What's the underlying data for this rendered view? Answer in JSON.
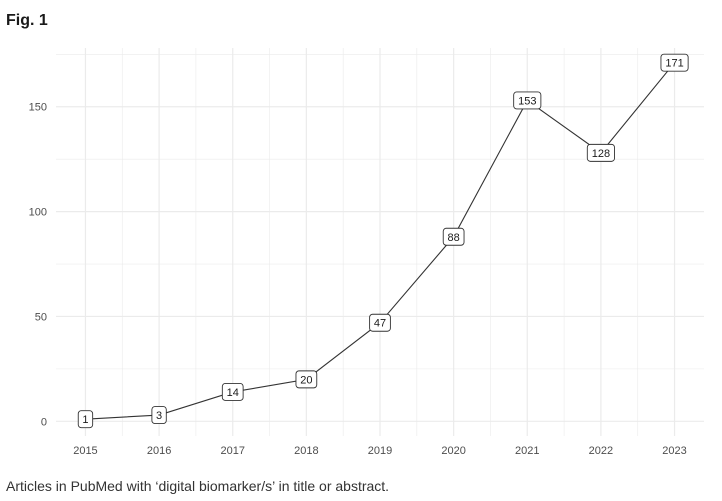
{
  "figure": {
    "label": "Fig. 1",
    "caption": "Articles in PubMed with ‘digital biomarker/s’ in title or abstract."
  },
  "chart_data": {
    "type": "line",
    "title": "",
    "xlabel": "",
    "ylabel": "",
    "x": [
      2015,
      2016,
      2017,
      2018,
      2019,
      2020,
      2021,
      2022,
      2023
    ],
    "series": [
      {
        "values": [
          1,
          3,
          14,
          20,
          47,
          88,
          153,
          128,
          171
        ]
      }
    ],
    "xlim": [
      2014.6,
      2023.4
    ],
    "ylim": [
      -7,
      178
    ],
    "y_ticks": [
      0,
      50,
      100,
      150
    ],
    "grid": true,
    "legend": "none",
    "data_labels": true,
    "colors": {
      "line": "#333333",
      "grid": "#ebebeb",
      "label_border": "#333333"
    }
  }
}
